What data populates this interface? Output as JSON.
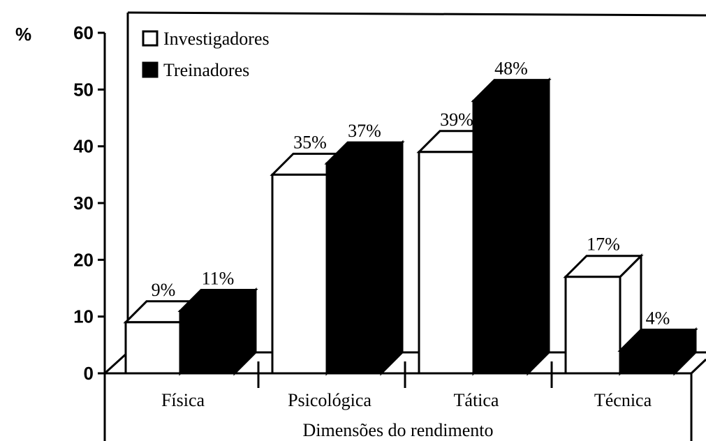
{
  "chart_data": {
    "type": "bar3d",
    "y_label": "%",
    "x_label": "Dimensões do rendimento",
    "categories": [
      "Física",
      "Psicológica",
      "Tática",
      "Técnica"
    ],
    "series": [
      {
        "name": "Investigadores",
        "color": "#ffffff",
        "values": [
          9,
          35,
          39,
          17
        ],
        "value_labels": [
          "9%",
          "35%",
          "39%",
          "17%"
        ]
      },
      {
        "name": "Treinadores",
        "color": "#000000",
        "values": [
          11,
          37,
          48,
          4
        ],
        "value_labels": [
          "11%",
          "37%",
          "48%",
          "4%"
        ]
      }
    ],
    "ylim": [
      0,
      60
    ],
    "yticks": [
      0,
      10,
      20,
      30,
      40,
      50,
      60
    ],
    "legend": "top-left"
  }
}
